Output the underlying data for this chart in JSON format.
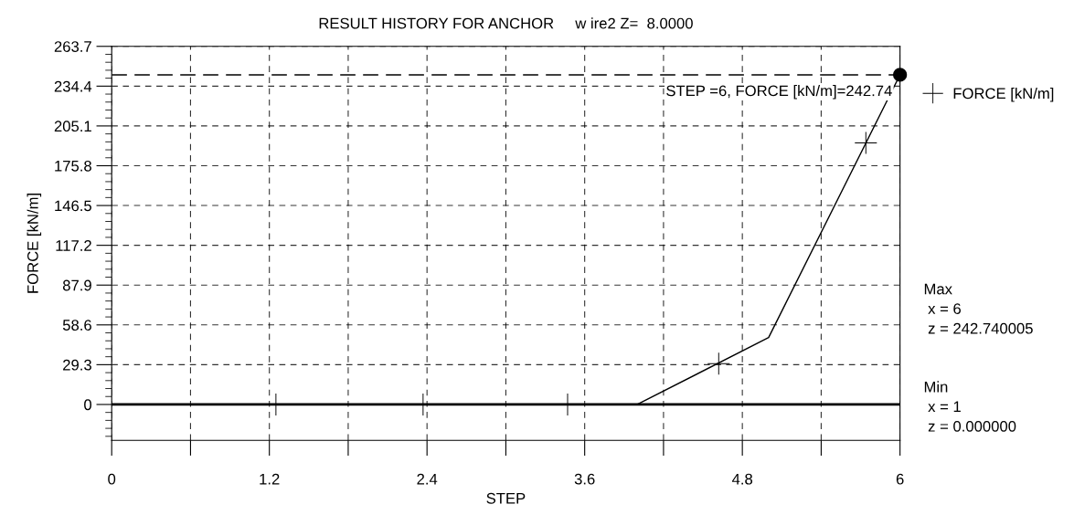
{
  "chart_data": {
    "type": "line",
    "title": "RESULT HISTORY FOR ANCHOR     w ire2 Z=  8.0000",
    "xlabel": "STEP",
    "ylabel": "FORCE [kN/m]",
    "series": [
      {
        "color": "#000000",
        "x": [
          0,
          4,
          5,
          6
        ],
        "values": [
          0,
          0,
          49.3,
          242.74
        ],
        "marker": "none"
      },
      {
        "type": "scatter",
        "name": "FORCE [kN/m]",
        "color": "#000000",
        "x": [
          1.25,
          2.37,
          3.47,
          4.62,
          5.74
        ],
        "values": [
          0,
          0,
          0,
          30.0,
          192.6
        ],
        "marker": "cross"
      }
    ],
    "xlim": [
      0,
      6
    ],
    "xticks": [
      0,
      {
        "value": 0.6,
        "label": null
      },
      1.2,
      {
        "value": 1.8,
        "label": null
      },
      2.4,
      {
        "value": 3.0,
        "label": null
      },
      3.6,
      {
        "value": 4.2,
        "label": null
      },
      4.8,
      {
        "value": 5.4,
        "label": null
      },
      6
    ],
    "ylim": [
      -26.4,
      263.7
    ],
    "yticks": [
      0,
      29.3,
      58.6,
      87.9,
      117.2,
      146.5,
      175.8,
      205.1,
      234.4,
      263.7
    ],
    "ref_lines": [
      {
        "axis": "y",
        "value": 242.74,
        "label": null,
        "line_style": "dashed",
        "color": "#000000"
      },
      {
        "axis": "y",
        "value": 0,
        "label": null,
        "line_style": "solid",
        "color": "#000000"
      }
    ],
    "annotations": [
      {
        "text": "STEP =6, FORCE [kN/m]=242.74",
        "x": 6,
        "y": 242.74
      },
      "Max\n x = 6\n z = 242.740005",
      "Min\n x = 1\n z = 0.000000"
    ],
    "grid": true,
    "legend": "top right"
  }
}
